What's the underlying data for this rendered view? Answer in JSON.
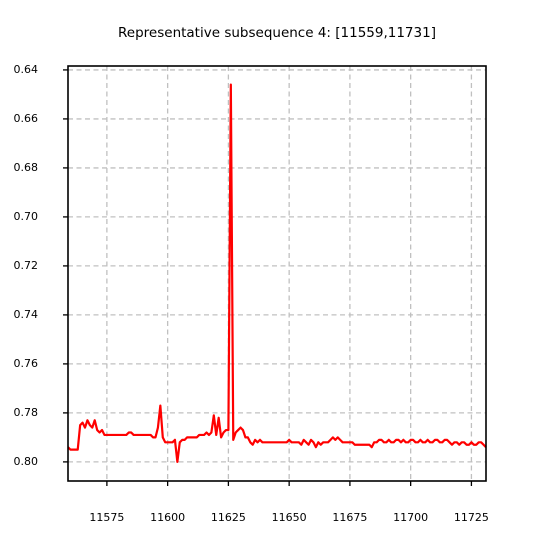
{
  "chart_data": {
    "type": "line",
    "title": "Representative subsequence 4: [11559,11731]",
    "x": [
      11559,
      11560,
      11561,
      11562,
      11563,
      11564,
      11565,
      11566,
      11567,
      11568,
      11569,
      11570,
      11571,
      11572,
      11573,
      11574,
      11575,
      11576,
      11577,
      11578,
      11579,
      11580,
      11581,
      11582,
      11583,
      11584,
      11585,
      11586,
      11587,
      11588,
      11589,
      11590,
      11591,
      11592,
      11593,
      11594,
      11595,
      11596,
      11597,
      11598,
      11599,
      11600,
      11601,
      11602,
      11603,
      11604,
      11605,
      11606,
      11607,
      11608,
      11609,
      11610,
      11611,
      11612,
      11613,
      11614,
      11615,
      11616,
      11617,
      11618,
      11619,
      11620,
      11621,
      11622,
      11623,
      11624,
      11625,
      11626,
      11627,
      11628,
      11629,
      11630,
      11631,
      11632,
      11633,
      11634,
      11635,
      11636,
      11637,
      11638,
      11639,
      11640,
      11641,
      11642,
      11643,
      11644,
      11645,
      11646,
      11647,
      11648,
      11649,
      11650,
      11651,
      11652,
      11653,
      11654,
      11655,
      11656,
      11657,
      11658,
      11659,
      11660,
      11661,
      11662,
      11663,
      11664,
      11665,
      11666,
      11667,
      11668,
      11669,
      11670,
      11671,
      11672,
      11673,
      11674,
      11675,
      11676,
      11677,
      11678,
      11679,
      11680,
      11681,
      11682,
      11683,
      11684,
      11685,
      11686,
      11687,
      11688,
      11689,
      11690,
      11691,
      11692,
      11693,
      11694,
      11695,
      11696,
      11697,
      11698,
      11699,
      11700,
      11701,
      11702,
      11703,
      11704,
      11705,
      11706,
      11707,
      11708,
      11709,
      11710,
      11711,
      11712,
      11713,
      11714,
      11715,
      11716,
      11717,
      11718,
      11719,
      11720,
      11721,
      11722,
      11723,
      11724,
      11725,
      11726,
      11727,
      11728,
      11729,
      11730,
      11731
    ],
    "series": [
      {
        "color": "#ff0000",
        "values": [
          0.794,
          0.795,
          0.795,
          0.795,
          0.795,
          0.785,
          0.784,
          0.786,
          0.783,
          0.785,
          0.786,
          0.783,
          0.787,
          0.788,
          0.787,
          0.789,
          0.789,
          0.789,
          0.789,
          0.789,
          0.789,
          0.789,
          0.789,
          0.789,
          0.789,
          0.788,
          0.788,
          0.789,
          0.789,
          0.789,
          0.789,
          0.789,
          0.789,
          0.789,
          0.789,
          0.79,
          0.79,
          0.786,
          0.777,
          0.79,
          0.792,
          0.792,
          0.792,
          0.792,
          0.791,
          0.8,
          0.792,
          0.791,
          0.791,
          0.79,
          0.79,
          0.79,
          0.79,
          0.79,
          0.789,
          0.789,
          0.789,
          0.788,
          0.789,
          0.788,
          0.781,
          0.789,
          0.782,
          0.79,
          0.788,
          0.787,
          0.787,
          0.646,
          0.791,
          0.788,
          0.787,
          0.786,
          0.787,
          0.79,
          0.79,
          0.792,
          0.793,
          0.791,
          0.792,
          0.791,
          0.792,
          0.792,
          0.792,
          0.792,
          0.792,
          0.792,
          0.792,
          0.792,
          0.792,
          0.792,
          0.792,
          0.791,
          0.792,
          0.792,
          0.792,
          0.792,
          0.793,
          0.791,
          0.792,
          0.793,
          0.791,
          0.792,
          0.794,
          0.792,
          0.793,
          0.792,
          0.792,
          0.792,
          0.791,
          0.79,
          0.791,
          0.79,
          0.791,
          0.792,
          0.792,
          0.792,
          0.792,
          0.792,
          0.793,
          0.793,
          0.793,
          0.793,
          0.793,
          0.793,
          0.793,
          0.794,
          0.792,
          0.792,
          0.791,
          0.791,
          0.792,
          0.792,
          0.791,
          0.792,
          0.792,
          0.791,
          0.791,
          0.792,
          0.791,
          0.792,
          0.792,
          0.791,
          0.791,
          0.792,
          0.792,
          0.791,
          0.792,
          0.792,
          0.791,
          0.792,
          0.792,
          0.791,
          0.791,
          0.792,
          0.792,
          0.791,
          0.791,
          0.792,
          0.793,
          0.792,
          0.792,
          0.793,
          0.792,
          0.792,
          0.793,
          0.793,
          0.792,
          0.793,
          0.793,
          0.792,
          0.792,
          0.793,
          0.794
        ]
      }
    ],
    "xlim": [
      11559,
      11731
    ],
    "ylim": [
      0.8078,
      0.6384
    ],
    "xticks": [
      11575,
      11600,
      11625,
      11650,
      11675,
      11700,
      11725
    ],
    "yticks": [
      0.64,
      0.66,
      0.68,
      {
        "value": 0.7,
        "label": "0.70"
      },
      0.72,
      0.74,
      0.76,
      0.78,
      {
        "value": 0.8,
        "label": "0.80"
      }
    ],
    "grid": true
  }
}
